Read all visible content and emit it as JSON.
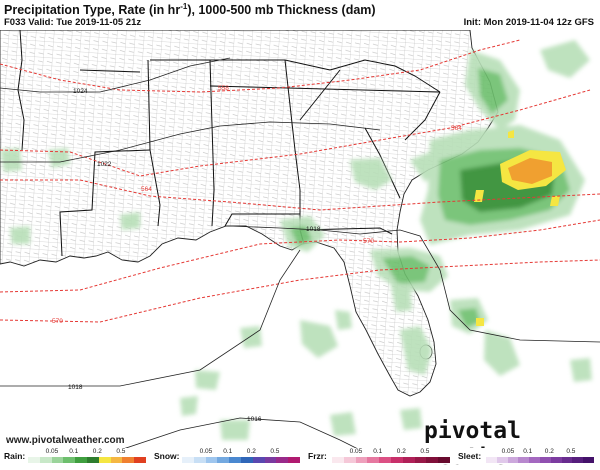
{
  "header": {
    "title": "Precipitation Type, Rate (in hr",
    "title_sup": "-1",
    "title_suffix": "), 1000-500 mb Thickness (dam)",
    "valid": "F033 Valid: Tue 2019-11-05 21z",
    "init": "Init: Mon 2019-11-04 12z GFS"
  },
  "map": {
    "isobar_labels": [
      "1024",
      "1022",
      "1018",
      "1018",
      "1016"
    ],
    "thickness_labels": [
      "558",
      "564",
      "564",
      "570",
      "570"
    ],
    "colors": {
      "rain_light": "#b8dfb8",
      "rain_med": "#6dbf6d",
      "rain_heavy": "#2e8b2e",
      "rain_yellow": "#f5e642",
      "rain_orange": "#f0a030",
      "thickness": "#e53935",
      "isobar": "#222222",
      "county": "#999999"
    }
  },
  "footer": {
    "website": "www.pivotalweather.com",
    "brand": "pivotal weather"
  },
  "legend": {
    "rain_label": "Rain:",
    "snow_label": "Snow:",
    "frzr_label": "Frzr:",
    "sleet_label": "Sleet:",
    "ticks": [
      "0.05",
      "0.1",
      "0.2",
      "0.5"
    ],
    "rain_colors": [
      "#e8f5e8",
      "#c8e8c8",
      "#9bd49b",
      "#6dbf6d",
      "#3f9f3f",
      "#2e7d2e",
      "#f5e642",
      "#f5b742",
      "#f08030",
      "#e04020"
    ],
    "snow_colors": [
      "#e6f0fa",
      "#c8dff5",
      "#9fc6ee",
      "#74a9e0",
      "#4a88d0",
      "#2f66b8",
      "#5a48b0",
      "#7a3aa0",
      "#992a8a",
      "#b01a70"
    ],
    "frzr_colors": [
      "#fae8ee",
      "#f5c8d8",
      "#eea0bc",
      "#e678a0",
      "#dc5084",
      "#c8306a",
      "#b02058",
      "#981848",
      "#80103a",
      "#680a2e"
    ],
    "sleet_colors": [
      "#f2e6f5",
      "#e0c8ea",
      "#cca8dc",
      "#b888ce",
      "#a468c0",
      "#9050b0",
      "#7c3ca0",
      "#682c8e",
      "#561e7c",
      "#44126a"
    ]
  }
}
